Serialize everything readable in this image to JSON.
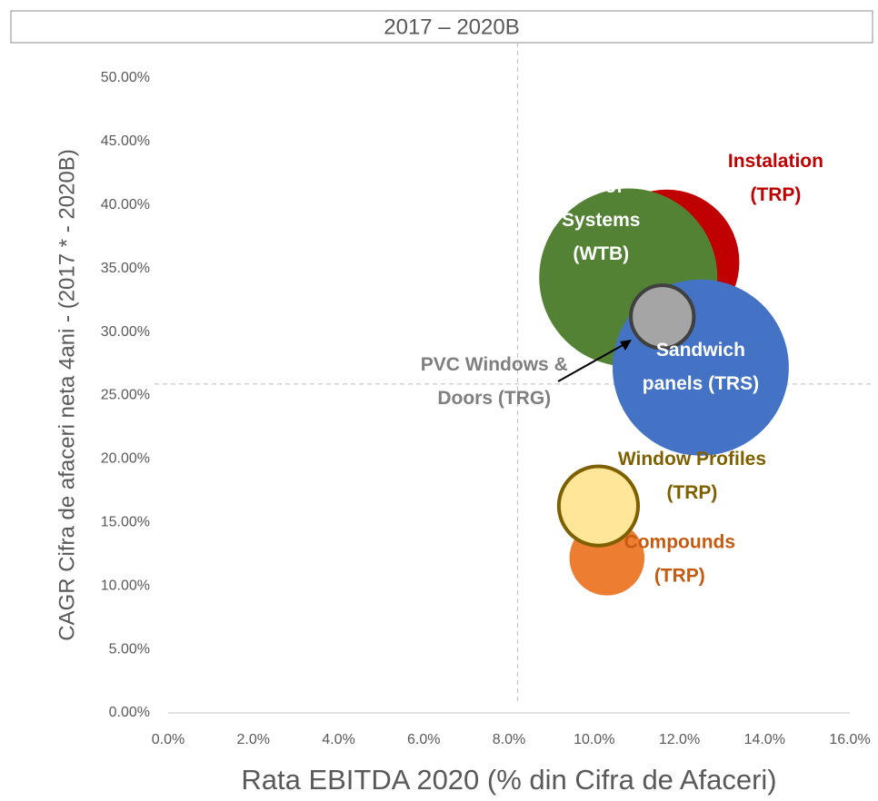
{
  "chart_data": {
    "type": "bubble",
    "title": "2017 – 2020B",
    "x_label": "Rata EBITDA  2020 (% din Cifra de Afaceri)",
    "y_label": "CAGR Cifra de afaceri neta 4ani - (2017 * - 2020B)",
    "xlim": [
      0,
      16
    ],
    "ylim": [
      0,
      50
    ],
    "xticks": [
      {
        "value": 0,
        "label": "0.0%"
      },
      {
        "value": 2,
        "label": "2.0%"
      },
      {
        "value": 4,
        "label": "4.0%"
      },
      {
        "value": 6,
        "label": "6.0%"
      },
      {
        "value": 8,
        "label": "8.0%"
      },
      {
        "value": 10,
        "label": "10.0%"
      },
      {
        "value": 12,
        "label": "12.0%"
      },
      {
        "value": 14,
        "label": "14.0%"
      },
      {
        "value": 16,
        "label": "16.0%"
      }
    ],
    "yticks": [
      {
        "value": 0,
        "label": "0.00%"
      },
      {
        "value": 5,
        "label": "5.00%"
      },
      {
        "value": 10,
        "label": "10.00%"
      },
      {
        "value": 15,
        "label": "15.00%"
      },
      {
        "value": 20,
        "label": "20.00%"
      },
      {
        "value": 25,
        "label": "25.00%"
      },
      {
        "value": 30,
        "label": "30.00%"
      },
      {
        "value": 35,
        "label": "35.00%"
      },
      {
        "value": 40,
        "label": "40.00%"
      },
      {
        "value": 45,
        "label": "45.00%"
      },
      {
        "value": 50,
        "label": "50.00%"
      }
    ],
    "reference_lines": {
      "x": 8.2,
      "y": 25.9
    },
    "series": [
      {
        "label": [
          "Instalation",
          "(TRP)"
        ],
        "color": "#c00000",
        "label_color": "#c00000",
        "x": [
          11.7
        ],
        "values": [
          35.5
        ],
        "sizes": [
          64
        ]
      },
      {
        "label": [
          "Roof",
          "Systems",
          "(WTB)"
        ],
        "color": "#548235",
        "label_color": "#ffffff",
        "x": [
          10.8
        ],
        "values": [
          34.3
        ],
        "sizes": [
          96
        ]
      },
      {
        "label": [
          "Sandwich",
          "panels (TRS)"
        ],
        "color": "#4472c4",
        "label_color": "#ffffff",
        "x": [
          12.5
        ],
        "values": [
          27.2
        ],
        "sizes": [
          94
        ]
      },
      {
        "label": [
          "PVC Windows &",
          "Doors (TRG)"
        ],
        "color": "#a5a5a5",
        "outline": "#404040",
        "label_color": "#7f7f7f",
        "x": [
          11.6
        ],
        "values": [
          31.2
        ],
        "sizes": [
          12
        ]
      },
      {
        "label": [
          "Compounds",
          "(TRP)"
        ],
        "color": "#ed7d31",
        "label_color": "#c55a11",
        "x": [
          10.3
        ],
        "values": [
          12.2
        ],
        "sizes": [
          17
        ]
      },
      {
        "label": [
          "Window Profiles",
          "(TRP)"
        ],
        "color": "#ffe699",
        "outline": "#7f6000",
        "label_color": "#7f6000",
        "x": [
          10.1
        ],
        "values": [
          16.3
        ],
        "sizes": [
          19
        ]
      }
    ]
  }
}
